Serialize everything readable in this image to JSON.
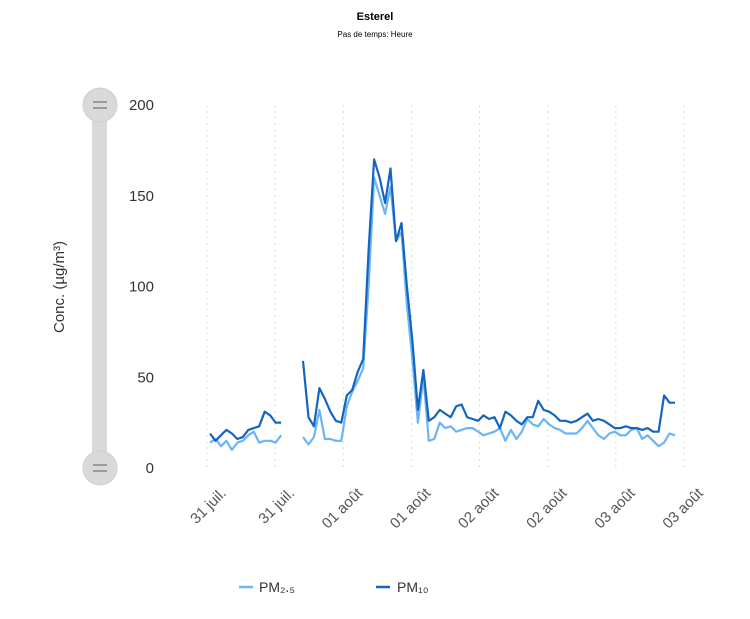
{
  "chart_data": {
    "type": "line",
    "title": "Esterel",
    "subtitle": "Pas de temps: Heure",
    "ylabel": "Conc. (µg/m³)",
    "xlabel": "",
    "ylim": [
      0,
      200
    ],
    "yticks": [
      "0",
      "50",
      "100",
      "150",
      "200"
    ],
    "xticks": [
      "31 juil.",
      "31 juil.",
      "01 août",
      "01 août",
      "02 août",
      "02 août",
      "03 août",
      "03 août"
    ],
    "grid": "vertical dotted",
    "legend": "bottom-center",
    "series": [
      {
        "name": "PM₂.₅",
        "color": "#6cb4f2",
        "values": [
          14,
          16,
          12,
          15,
          10,
          14,
          15,
          18,
          20,
          14,
          15,
          15,
          14,
          18,
          null,
          null,
          null,
          17,
          13,
          17,
          32,
          16,
          16,
          15,
          15,
          34,
          42,
          48,
          55,
          100,
          160,
          150,
          140,
          155,
          125,
          130,
          90,
          60,
          25,
          50,
          15,
          16,
          25,
          22,
          23,
          20,
          21,
          22,
          22,
          20,
          18,
          19,
          20,
          22,
          15,
          21,
          16,
          20,
          27,
          24,
          23,
          27,
          24,
          22,
          21,
          19,
          19,
          19,
          22,
          26,
          22,
          18,
          16,
          19,
          20,
          18,
          18,
          21,
          22,
          16,
          18,
          15,
          12,
          14,
          19,
          18
        ]
      },
      {
        "name": "PM₁₀",
        "color": "#1565c0",
        "values": [
          19,
          15,
          18,
          21,
          19,
          16,
          17,
          21,
          22,
          23,
          31,
          29,
          25,
          25,
          null,
          null,
          null,
          59,
          28,
          23,
          44,
          38,
          31,
          26,
          25,
          40,
          43,
          53,
          60,
          120,
          170,
          160,
          146,
          165,
          125,
          135,
          100,
          70,
          32,
          54,
          26,
          28,
          32,
          30,
          28,
          34,
          35,
          28,
          27,
          26,
          29,
          27,
          28,
          22,
          31,
          29,
          26,
          24,
          28,
          28,
          37,
          32,
          31,
          29,
          26,
          26,
          25,
          26,
          28,
          30,
          26,
          27,
          26,
          24,
          22,
          22,
          23,
          22,
          22,
          21,
          22,
          20,
          20,
          40,
          36,
          36
        ]
      }
    ]
  }
}
